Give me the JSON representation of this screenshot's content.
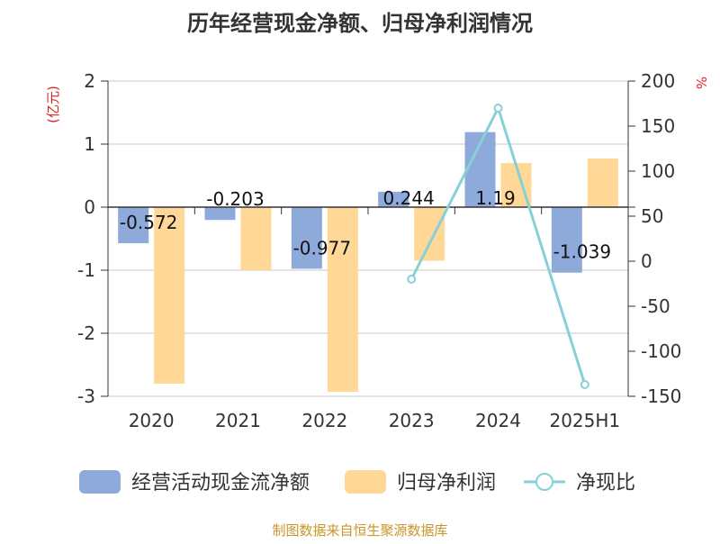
{
  "chart_data": {
    "type": "bar",
    "title": "历年经营现金净额、归母净利润情况",
    "categories": [
      "2020",
      "2021",
      "2022",
      "2023",
      "2024",
      "2025H1"
    ],
    "y_left": {
      "label": "(亿元)",
      "ticks": [
        2,
        1,
        0,
        -1,
        -2,
        -3
      ],
      "ylim": [
        -3,
        2
      ]
    },
    "y_right": {
      "label": "%",
      "ticks": [
        200,
        150,
        100,
        50,
        0,
        -50,
        -100,
        -150
      ],
      "ylim": [
        -150,
        200
      ]
    },
    "series": [
      {
        "name": "经营活动现金流净额",
        "type": "bar",
        "axis": "left",
        "color": "#8eaadb",
        "values": [
          -0.572,
          -0.203,
          -0.977,
          0.244,
          1.19,
          -1.039
        ],
        "labels": [
          "-0.572",
          "-0.203",
          "-0.977",
          "0.244",
          "1.19",
          "-1.039"
        ]
      },
      {
        "name": "归母净利润",
        "type": "bar",
        "axis": "left",
        "color": "#ffd897",
        "values": [
          -2.8,
          -1.0,
          -2.93,
          -0.85,
          0.7,
          0.77
        ]
      },
      {
        "name": "净现比",
        "type": "line",
        "axis": "right",
        "color": "#88d0d8",
        "values": [
          null,
          null,
          null,
          -20,
          170,
          -137
        ]
      }
    ],
    "legend_position": "bottom",
    "grid": true
  },
  "footer": {
    "source": "制图数据来自恒生聚源数据库"
  }
}
